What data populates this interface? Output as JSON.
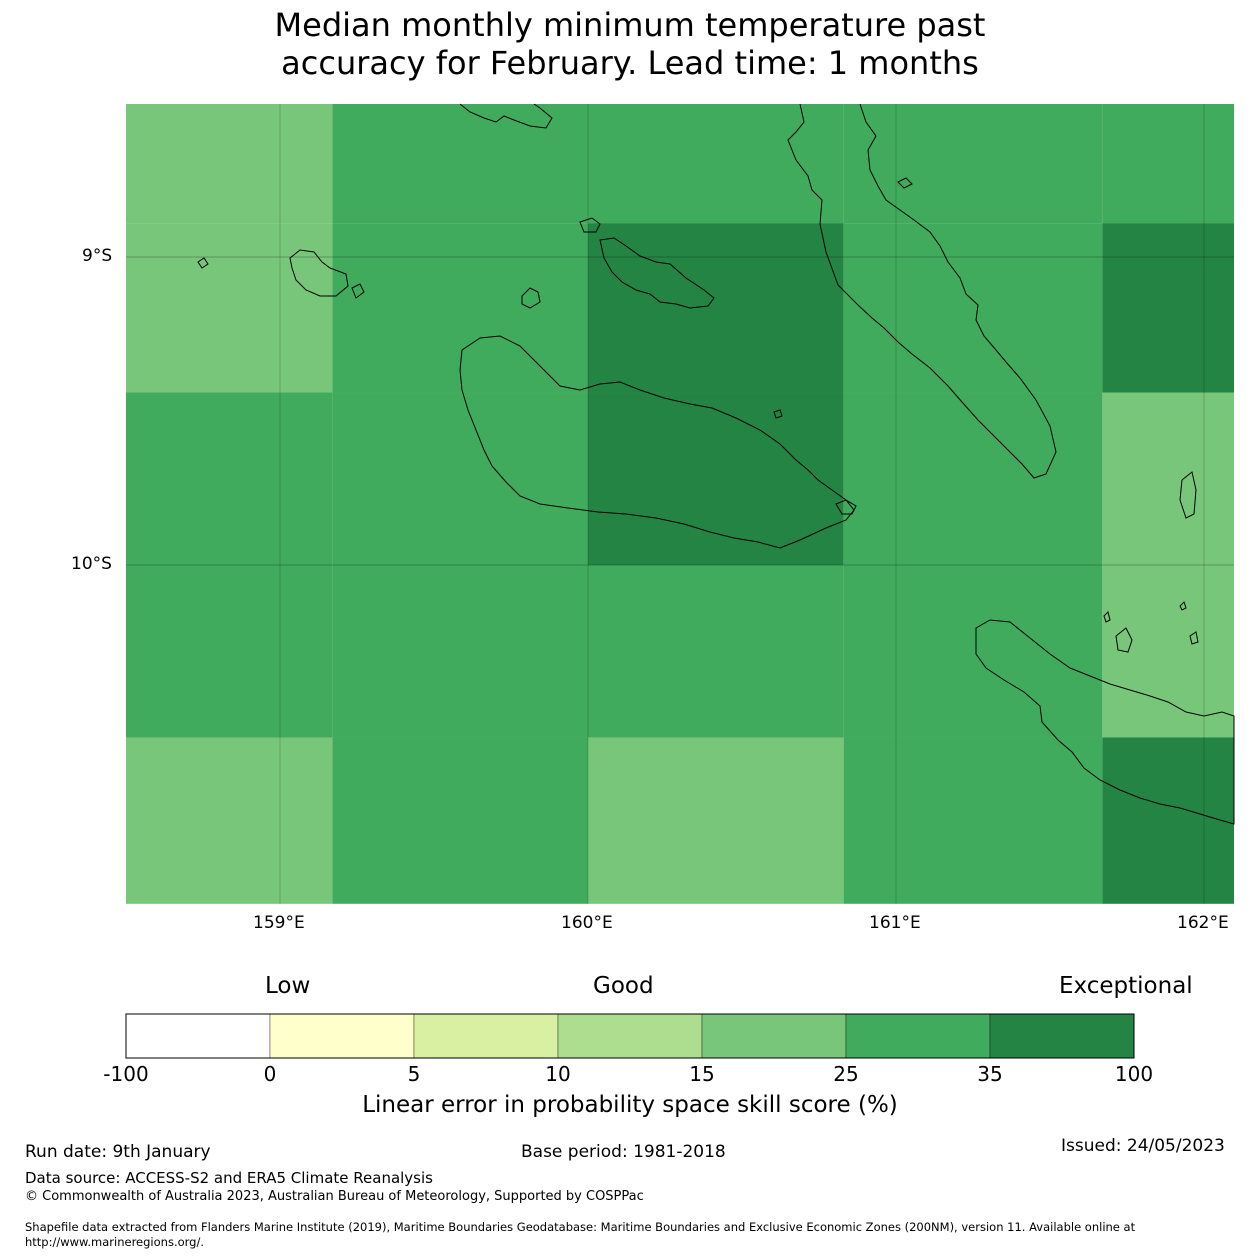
{
  "title": {
    "line1": "Median monthly minimum temperature past",
    "line2": "accuracy for February. Lead time: 1 months"
  },
  "map": {
    "lon_range": [
      158.5,
      162.1
    ],
    "lat_range": [
      -11.1,
      -8.5
    ],
    "lat_ticks": [
      {
        "value": -9,
        "label": "9°S"
      },
      {
        "value": -10,
        "label": "10°S"
      }
    ],
    "lon_ticks": [
      {
        "value": 159,
        "label": "159°E"
      },
      {
        "value": 160,
        "label": "160°E"
      },
      {
        "value": 161,
        "label": "161°E"
      },
      {
        "value": 162,
        "label": "162°E"
      }
    ],
    "grid_lines": true,
    "cells": [
      {
        "lon0": 158.5,
        "lon1": 159.17,
        "lat0": -8.5,
        "lat1": -8.89,
        "category": "15-25"
      },
      {
        "lon0": 159.17,
        "lon1": 160.0,
        "lat0": -8.5,
        "lat1": -8.89,
        "category": "25-35"
      },
      {
        "lon0": 160.0,
        "lon1": 160.83,
        "lat0": -8.5,
        "lat1": -8.89,
        "category": "25-35"
      },
      {
        "lon0": 160.83,
        "lon1": 161.67,
        "lat0": -8.5,
        "lat1": -8.89,
        "category": "25-35"
      },
      {
        "lon0": 161.67,
        "lon1": 162.1,
        "lat0": -8.5,
        "lat1": -8.89,
        "category": "25-35"
      },
      {
        "lon0": 158.5,
        "lon1": 159.17,
        "lat0": -8.89,
        "lat1": -9.44,
        "category": "15-25"
      },
      {
        "lon0": 159.17,
        "lon1": 160.0,
        "lat0": -8.89,
        "lat1": -9.44,
        "category": "25-35"
      },
      {
        "lon0": 160.0,
        "lon1": 160.83,
        "lat0": -8.89,
        "lat1": -9.44,
        "category": "35-100"
      },
      {
        "lon0": 160.83,
        "lon1": 161.67,
        "lat0": -8.89,
        "lat1": -9.44,
        "category": "25-35"
      },
      {
        "lon0": 161.67,
        "lon1": 162.1,
        "lat0": -8.89,
        "lat1": -9.44,
        "category": "35-100"
      },
      {
        "lon0": 158.5,
        "lon1": 159.17,
        "lat0": -9.44,
        "lat1": -10.0,
        "category": "25-35"
      },
      {
        "lon0": 159.17,
        "lon1": 160.0,
        "lat0": -9.44,
        "lat1": -10.0,
        "category": "25-35"
      },
      {
        "lon0": 160.0,
        "lon1": 160.83,
        "lat0": -9.44,
        "lat1": -10.0,
        "category": "35-100"
      },
      {
        "lon0": 160.83,
        "lon1": 161.67,
        "lat0": -9.44,
        "lat1": -10.0,
        "category": "25-35"
      },
      {
        "lon0": 161.67,
        "lon1": 162.1,
        "lat0": -9.44,
        "lat1": -10.0,
        "category": "15-25"
      },
      {
        "lon0": 158.5,
        "lon1": 159.17,
        "lat0": -10.0,
        "lat1": -10.56,
        "category": "25-35"
      },
      {
        "lon0": 159.17,
        "lon1": 160.0,
        "lat0": -10.0,
        "lat1": -10.56,
        "category": "25-35"
      },
      {
        "lon0": 160.0,
        "lon1": 160.83,
        "lat0": -10.0,
        "lat1": -10.56,
        "category": "25-35"
      },
      {
        "lon0": 160.83,
        "lon1": 161.67,
        "lat0": -10.0,
        "lat1": -10.56,
        "category": "25-35"
      },
      {
        "lon0": 161.67,
        "lon1": 162.1,
        "lat0": -10.0,
        "lat1": -10.56,
        "category": "15-25"
      },
      {
        "lon0": 158.5,
        "lon1": 159.17,
        "lat0": -10.56,
        "lat1": -11.1,
        "category": "15-25"
      },
      {
        "lon0": 159.17,
        "lon1": 160.0,
        "lat0": -10.56,
        "lat1": -11.1,
        "category": "25-35"
      },
      {
        "lon0": 160.0,
        "lon1": 160.83,
        "lat0": -10.56,
        "lat1": -11.1,
        "category": "15-25"
      },
      {
        "lon0": 160.83,
        "lon1": 161.67,
        "lat0": -10.56,
        "lat1": -11.1,
        "category": "25-35"
      },
      {
        "lon0": 161.67,
        "lon1": 162.1,
        "lat0": -10.56,
        "lat1": -11.1,
        "category": "35-100"
      }
    ]
  },
  "colorbar": {
    "category_labels": {
      "low": "Low",
      "good": "Good",
      "exceptional": "Exceptional"
    },
    "segments": [
      {
        "from": "-100",
        "to": "0",
        "color": "#ffffff"
      },
      {
        "from": "0",
        "to": "5",
        "color": "#ffffcc"
      },
      {
        "from": "5",
        "to": "10",
        "color": "#d9f0a3"
      },
      {
        "from": "10",
        "to": "15",
        "color": "#addd8e"
      },
      {
        "from": "15",
        "to": "25",
        "color": "#78c679"
      },
      {
        "from": "25",
        "to": "35",
        "color": "#41ab5d"
      },
      {
        "from": "35",
        "to": "100",
        "color": "#238443"
      }
    ],
    "ticks": [
      "-100",
      "0",
      "5",
      "10",
      "15",
      "25",
      "35",
      "100"
    ],
    "label": "Linear error in probability space skill score (%)"
  },
  "footer": {
    "run_date": "Run date: 9th January",
    "base_period": "Base period: 1981-2018",
    "issued": "Issued: 24/05/2023",
    "data_source": "Data source: ACCESS-S2 and ERA5 Climate Reanalysis",
    "copyright": "© Commonwealth of Australia 2023, Australian Bureau of Meteorology, Supported by COSPPac",
    "shapefile_line1": "Shapefile data extracted from Flanders Marine Institute (2019), Maritime Boundaries Geodatabase: Maritime Boundaries and Exclusive Economic Zones (200NM), version 11. Available online at",
    "shapefile_line2": "http://www.marineregions.org/."
  }
}
